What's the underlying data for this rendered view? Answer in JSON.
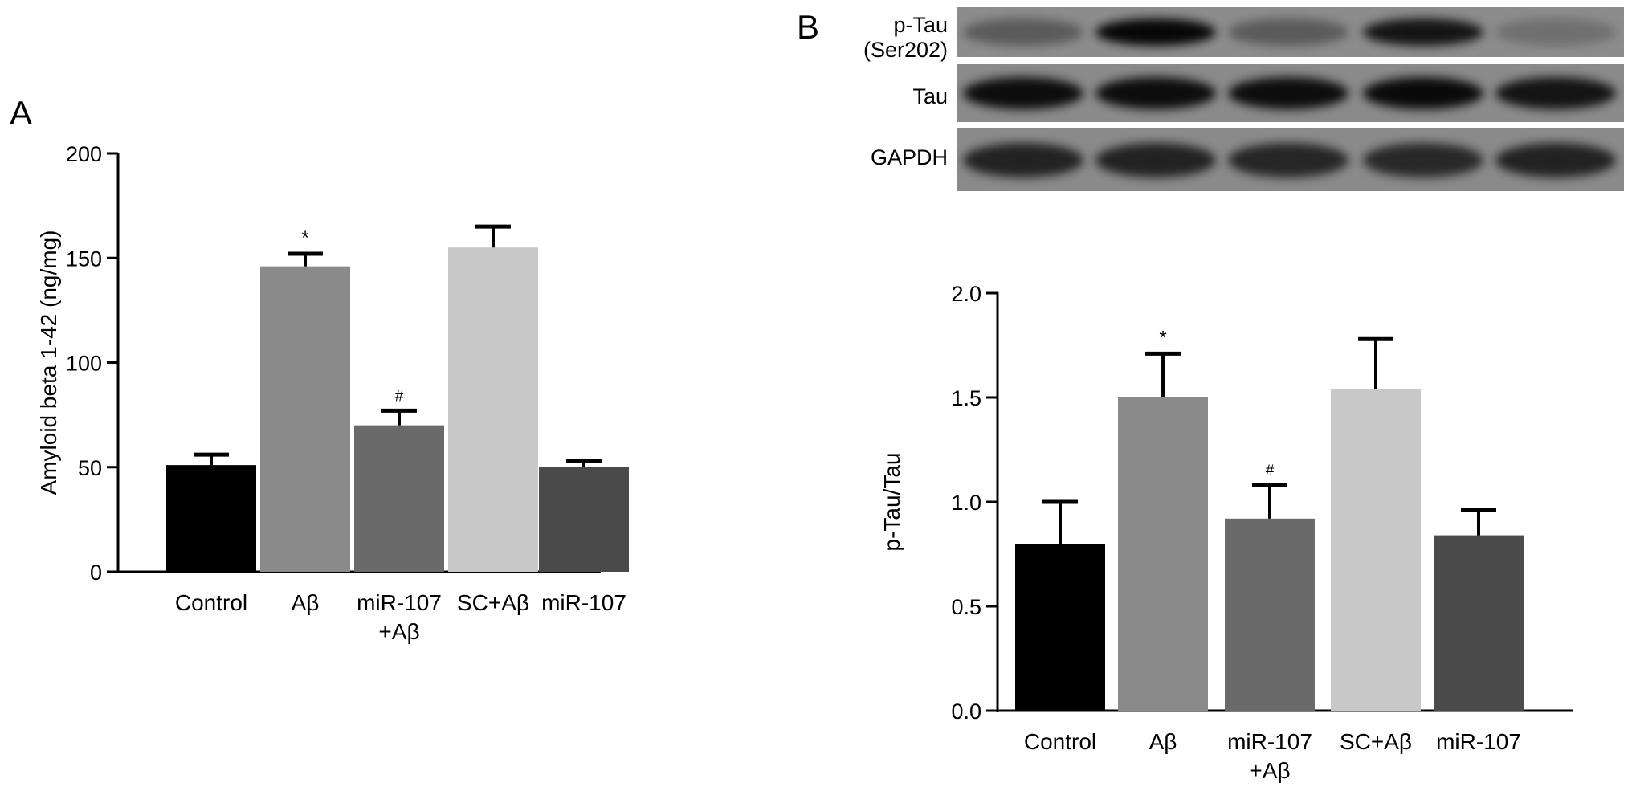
{
  "panels": [
    {
      "label": "A",
      "chart_data": {
        "type": "bar",
        "categories": [
          [
            "Control"
          ],
          [
            "Aβ"
          ],
          [
            "miR-107",
            "+Aβ"
          ],
          [
            "SC+Aβ"
          ],
          [
            "miR-107"
          ]
        ],
        "values": [
          51,
          146,
          70,
          155,
          50
        ],
        "errors": [
          5,
          6,
          7,
          10,
          3
        ],
        "annotations": [
          "",
          "*",
          "#",
          "",
          ""
        ],
        "colors": [
          "#000000",
          "#8a8a8a",
          "#6a6a6a",
          "#c8c8c8",
          "#4a4a4a"
        ],
        "ylabel": "Amyloid beta 1-42 (ng/mg)",
        "ylim": [
          0,
          200
        ],
        "yticks": [
          "0",
          "50",
          "100",
          "150",
          "200"
        ],
        "grid": false
      }
    },
    {
      "label": "B",
      "western_blot": {
        "rows": [
          {
            "label_lines": [
              "p-Tau",
              "(Ser202)"
            ],
            "intensities": [
              0.35,
              0.95,
              0.35,
              0.85,
              0.2
            ]
          },
          {
            "label_lines": [
              "Tau"
            ],
            "intensities": [
              0.9,
              0.9,
              0.9,
              0.92,
              0.85
            ]
          },
          {
            "label_lines": [
              "GAPDH"
            ],
            "intensities": [
              0.75,
              0.75,
              0.72,
              0.7,
              0.75
            ]
          }
        ]
      },
      "chart_data": {
        "type": "bar",
        "categories": [
          [
            "Control"
          ],
          [
            "Aβ"
          ],
          [
            "miR-107",
            "+Aβ"
          ],
          [
            "SC+Aβ"
          ],
          [
            "miR-107"
          ]
        ],
        "values": [
          0.8,
          1.5,
          0.92,
          1.54,
          0.84
        ],
        "errors": [
          0.2,
          0.21,
          0.16,
          0.24,
          0.12
        ],
        "annotations": [
          "",
          "*",
          "#",
          "",
          ""
        ],
        "colors": [
          "#000000",
          "#8a8a8a",
          "#6a6a6a",
          "#c8c8c8",
          "#4a4a4a"
        ],
        "ylabel": "p-Tau/Tau",
        "ylim": [
          0,
          2.0
        ],
        "yticks": [
          "0.0",
          "0.5",
          "1.0",
          "1.5",
          "2.0"
        ],
        "grid": false
      }
    }
  ]
}
